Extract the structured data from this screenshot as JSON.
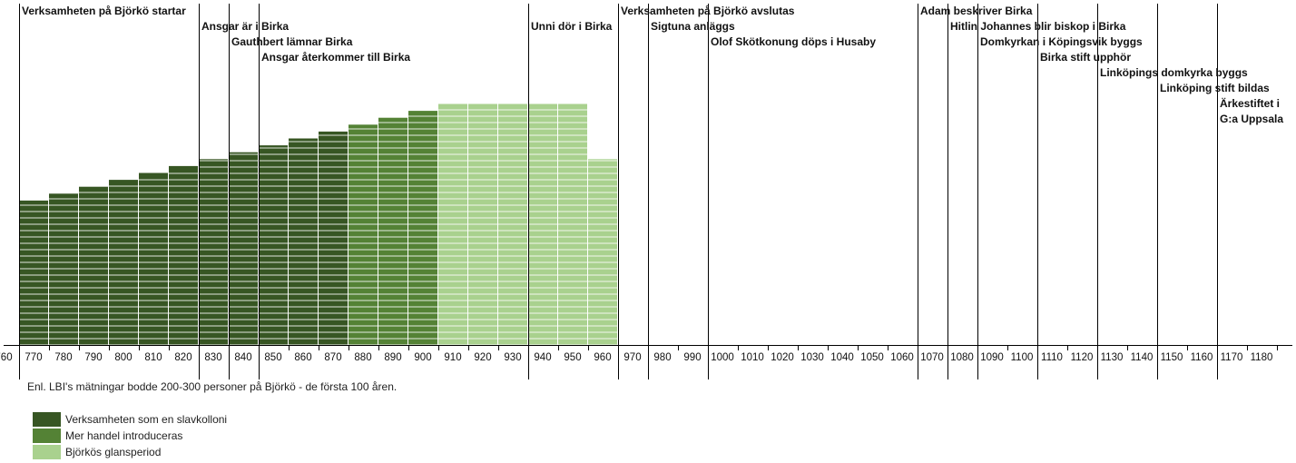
{
  "chart_data": {
    "type": "bar",
    "x_start": 760,
    "x_end": 1180,
    "tick_step": 10,
    "bar_width_years": 10,
    "bars": [
      {
        "start": 765,
        "value": 42,
        "series": 0
      },
      {
        "start": 775,
        "value": 44,
        "series": 0
      },
      {
        "start": 785,
        "value": 46,
        "series": 0
      },
      {
        "start": 795,
        "value": 48,
        "series": 0
      },
      {
        "start": 805,
        "value": 50,
        "series": 0
      },
      {
        "start": 815,
        "value": 52,
        "series": 0
      },
      {
        "start": 825,
        "value": 54,
        "series": 0
      },
      {
        "start": 835,
        "value": 56,
        "series": 0
      },
      {
        "start": 845,
        "value": 58,
        "series": 0
      },
      {
        "start": 855,
        "value": 60,
        "series": 0
      },
      {
        "start": 865,
        "value": 62,
        "series": 0
      },
      {
        "start": 875,
        "value": 64,
        "series": 1
      },
      {
        "start": 885,
        "value": 66,
        "series": 1
      },
      {
        "start": 895,
        "value": 68,
        "series": 1
      },
      {
        "start": 905,
        "value": 70,
        "series": 2
      },
      {
        "start": 915,
        "value": 70,
        "series": 2
      },
      {
        "start": 925,
        "value": 70,
        "series": 2
      },
      {
        "start": 935,
        "value": 70,
        "series": 2
      },
      {
        "start": 945,
        "value": 70,
        "series": 2
      },
      {
        "start": 955,
        "value": 54,
        "series": 2
      }
    ],
    "ylim": [
      0,
      100
    ],
    "series": [
      {
        "name": "Verksamheten som en slavkolloni",
        "color": "#375623"
      },
      {
        "name": "Mer handel introduceras",
        "color": "#548235"
      },
      {
        "name": "Björkös glansperiod",
        "color": "#a9d18e"
      }
    ],
    "events": [
      {
        "year": 765,
        "label": "Verksamheten på Björkö startar",
        "row": 0
      },
      {
        "year": 825,
        "label": "Ansgar är i Birka",
        "row": 1
      },
      {
        "year": 835,
        "label": "Gauthbert lämnar Birka",
        "row": 2
      },
      {
        "year": 845,
        "label": "Ansgar återkommer till Birka",
        "row": 3
      },
      {
        "year": 935,
        "label": "Unni dör i Birka",
        "row": 1
      },
      {
        "year": 965,
        "label": "Verksamheten på Björkö avslutas",
        "row": 0
      },
      {
        "year": 975,
        "label": "Sigtuna anläggs",
        "row": 1
      },
      {
        "year": 995,
        "label": "Olof Skötkonung döps i Husaby",
        "row": 2
      },
      {
        "year": 1065,
        "label": "Adam beskriver Birka",
        "row": 0
      },
      {
        "year": 1075,
        "label": "Hitlin Johannes blir biskop i Birka",
        "row": 1
      },
      {
        "year": 1085,
        "label": "Domkyrkan i Köpingsvik byggs",
        "row": 2
      },
      {
        "year": 1105,
        "label": "Birka stift upphör",
        "row": 3
      },
      {
        "year": 1125,
        "label": "Linköpings domkyrka byggs",
        "row": 4
      },
      {
        "year": 1145,
        "label": "Linköping stift bildas",
        "row": 5
      },
      {
        "year": 1165,
        "label": "Ärkestiftet i",
        "row": 6
      },
      {
        "year": 1165,
        "label": "G:a Uppsala",
        "row": 7
      }
    ],
    "note": "Enl. LBI's mätningar bodde 200-300 personer på Björkö - de första 100 åren."
  }
}
